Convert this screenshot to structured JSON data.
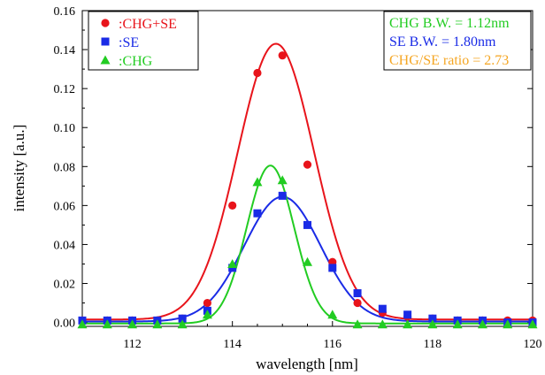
{
  "chart_data": {
    "type": "scatter",
    "xlabel": "wavelength [nm]",
    "ylabel": "intensity [a.u.]",
    "xlim": [
      111,
      120
    ],
    "ylim": [
      -0.002,
      0.16
    ],
    "xticks": [
      112,
      114,
      116,
      118,
      120
    ],
    "yticks": [
      0.0,
      0.02,
      0.04,
      0.06,
      0.08,
      0.1,
      0.12,
      0.14,
      0.16
    ],
    "ytick_labels": [
      "0.00",
      "0.02",
      "0.04",
      "0.06",
      "0.08",
      "0.10",
      "0.12",
      "0.14",
      "0.16"
    ],
    "legend_position": "top-left",
    "series": [
      {
        "name": ":CHG+SE",
        "color": "#e8141b",
        "marker": "circle",
        "x": [
          111,
          111.5,
          112,
          112.5,
          113,
          113.5,
          114,
          114.5,
          115,
          115.5,
          116,
          116.5,
          117,
          117.5,
          118,
          118.5,
          119,
          119.5,
          120
        ],
        "y": [
          0.001,
          0.001,
          0.001,
          0.001,
          0.002,
          0.01,
          0.06,
          0.128,
          0.137,
          0.081,
          0.031,
          0.01,
          0.005,
          0.003,
          0.002,
          0.001,
          0.001,
          0.001,
          0.001
        ],
        "fit": {
          "peak": 0.1415,
          "center": 114.87,
          "fwhm": 1.8,
          "baseline": 0.0015
        }
      },
      {
        "name": ":SE",
        "color": "#1a2be6",
        "marker": "square",
        "x": [
          111,
          111.5,
          112,
          112.5,
          113,
          113.5,
          114,
          114.5,
          115,
          115.5,
          116,
          116.5,
          117,
          117.5,
          118,
          118.5,
          119,
          119.5,
          120
        ],
        "y": [
          0.001,
          0.001,
          0.001,
          0.001,
          0.002,
          0.006,
          0.028,
          0.056,
          0.065,
          0.05,
          0.028,
          0.015,
          0.007,
          0.004,
          0.002,
          0.001,
          0.001,
          0.0,
          0.0
        ],
        "fit": {
          "peak": 0.064,
          "center": 115.0,
          "fwhm": 1.8,
          "baseline": 0.0005
        }
      },
      {
        "name": ":CHG",
        "color": "#22cc22",
        "marker": "triangle",
        "x": [
          111,
          111.5,
          112,
          112.5,
          113,
          113.5,
          114,
          114.5,
          115,
          115.5,
          116,
          116.5,
          117,
          117.5,
          118,
          118.5,
          119,
          119.5,
          120
        ],
        "y": [
          -0.001,
          -0.001,
          -0.001,
          -0.001,
          -0.001,
          0.004,
          0.03,
          0.072,
          0.073,
          0.031,
          0.004,
          -0.001,
          -0.001,
          -0.001,
          -0.001,
          -0.001,
          -0.001,
          -0.001,
          -0.001
        ],
        "fit": {
          "peak": 0.081,
          "center": 114.76,
          "fwhm": 1.12,
          "baseline": -0.0005
        }
      }
    ],
    "annotations": [
      {
        "text": "CHG B.W. = 1.12nm",
        "color": "#22cc22"
      },
      {
        "text": "SE B.W. = 1.80nm",
        "color": "#1a2be6"
      },
      {
        "text": "CHG/SE ratio = 2.73",
        "color": "#f5a623"
      }
    ]
  }
}
